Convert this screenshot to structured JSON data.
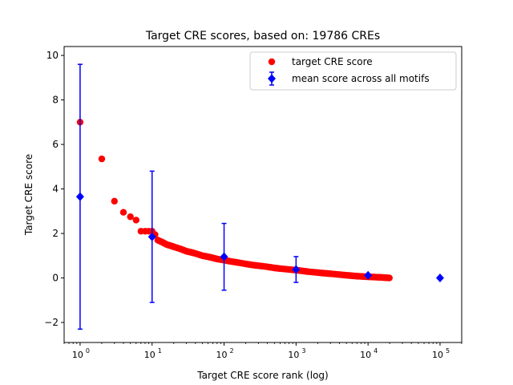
{
  "chart_data": {
    "type": "scatter",
    "title": "Target CRE scores, based on: 19786 CREs",
    "xlabel": "Target CRE score rank (log)",
    "ylabel": "Target CRE score",
    "xscale": "log",
    "xlim": [
      0.6,
      200000
    ],
    "ylim": [
      -2.9,
      10.4
    ],
    "x_ticks": [
      {
        "value": 1,
        "base": "10",
        "exp": "0"
      },
      {
        "value": 10,
        "base": "10",
        "exp": "1"
      },
      {
        "value": 100,
        "base": "10",
        "exp": "2"
      },
      {
        "value": 1000,
        "base": "10",
        "exp": "3"
      },
      {
        "value": 10000,
        "base": "10",
        "exp": "4"
      },
      {
        "value": 100000,
        "base": "10",
        "exp": "5"
      }
    ],
    "y_ticks": [
      {
        "value": -2,
        "label": "−2"
      },
      {
        "value": 0,
        "label": "0"
      },
      {
        "value": 2,
        "label": "2"
      },
      {
        "value": 4,
        "label": "4"
      },
      {
        "value": 6,
        "label": "6"
      },
      {
        "value": 8,
        "label": "8"
      },
      {
        "value": 10,
        "label": "10"
      }
    ],
    "grid": false,
    "legend_position": "top-right",
    "series": [
      {
        "name": "target CRE score",
        "marker": "circle",
        "color": "#ff0000",
        "x": [
          1,
          2,
          3,
          4,
          5,
          6,
          7,
          8,
          9,
          10,
          11,
          12,
          14,
          16,
          18,
          20,
          25,
          30,
          35,
          40,
          50,
          60,
          70,
          80,
          100,
          120,
          150,
          200,
          250,
          300,
          400,
          500,
          600,
          800,
          1000,
          1200,
          1500,
          2000,
          2500,
          3000,
          4000,
          5000,
          6000,
          7000,
          8000,
          10000,
          12000,
          14000,
          16000,
          18000,
          19786
        ],
        "y": [
          7.0,
          5.35,
          3.45,
          2.95,
          2.75,
          2.6,
          2.1,
          2.1,
          2.1,
          2.1,
          1.95,
          1.7,
          1.6,
          1.5,
          1.45,
          1.4,
          1.3,
          1.2,
          1.15,
          1.1,
          1.0,
          0.95,
          0.9,
          0.85,
          0.8,
          0.75,
          0.7,
          0.63,
          0.58,
          0.55,
          0.5,
          0.45,
          0.42,
          0.38,
          0.35,
          0.32,
          0.28,
          0.24,
          0.21,
          0.19,
          0.15,
          0.12,
          0.1,
          0.08,
          0.07,
          0.05,
          0.04,
          0.03,
          0.02,
          0.01,
          0.0
        ]
      },
      {
        "name": "mean score across all motifs",
        "marker": "diamond",
        "color": "#0000ff",
        "x": [
          1,
          10,
          100,
          1000,
          10000,
          100000
        ],
        "y": [
          3.65,
          1.85,
          0.95,
          0.38,
          0.12,
          0.0
        ],
        "err": [
          5.95,
          2.95,
          1.5,
          0.58,
          0.0,
          0.0
        ]
      }
    ]
  }
}
